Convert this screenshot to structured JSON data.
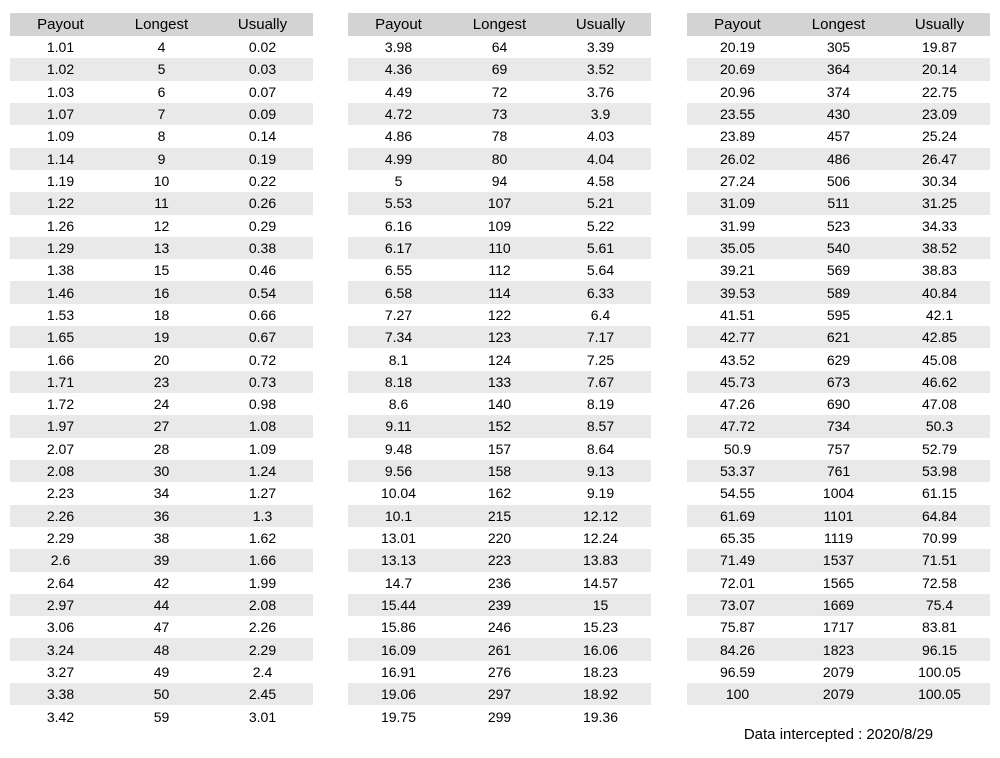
{
  "page": {
    "footer_note": "Data intercepted : 2020/8/29"
  },
  "style": {
    "header_bg": "#d3d3d3",
    "stripe_bg": "#e9e9e9",
    "text_color": "#000000"
  },
  "tables": [
    {
      "name": "payout-table-1",
      "headers": [
        "Payout",
        "Longest",
        "Usually"
      ],
      "rows": [
        [
          "1.01",
          "4",
          "0.02"
        ],
        [
          "1.02",
          "5",
          "0.03"
        ],
        [
          "1.03",
          "6",
          "0.07"
        ],
        [
          "1.07",
          "7",
          "0.09"
        ],
        [
          "1.09",
          "8",
          "0.14"
        ],
        [
          "1.14",
          "9",
          "0.19"
        ],
        [
          "1.19",
          "10",
          "0.22"
        ],
        [
          "1.22",
          "11",
          "0.26"
        ],
        [
          "1.26",
          "12",
          "0.29"
        ],
        [
          "1.29",
          "13",
          "0.38"
        ],
        [
          "1.38",
          "15",
          "0.46"
        ],
        [
          "1.46",
          "16",
          "0.54"
        ],
        [
          "1.53",
          "18",
          "0.66"
        ],
        [
          "1.65",
          "19",
          "0.67"
        ],
        [
          "1.66",
          "20",
          "0.72"
        ],
        [
          "1.71",
          "23",
          "0.73"
        ],
        [
          "1.72",
          "24",
          "0.98"
        ],
        [
          "1.97",
          "27",
          "1.08"
        ],
        [
          "2.07",
          "28",
          "1.09"
        ],
        [
          "2.08",
          "30",
          "1.24"
        ],
        [
          "2.23",
          "34",
          "1.27"
        ],
        [
          "2.26",
          "36",
          "1.3"
        ],
        [
          "2.29",
          "38",
          "1.62"
        ],
        [
          "2.6",
          "39",
          "1.66"
        ],
        [
          "2.64",
          "42",
          "1.99"
        ],
        [
          "2.97",
          "44",
          "2.08"
        ],
        [
          "3.06",
          "47",
          "2.26"
        ],
        [
          "3.24",
          "48",
          "2.29"
        ],
        [
          "3.27",
          "49",
          "2.4"
        ],
        [
          "3.38",
          "50",
          "2.45"
        ],
        [
          "3.42",
          "59",
          "3.01"
        ]
      ]
    },
    {
      "name": "payout-table-2",
      "headers": [
        "Payout",
        "Longest",
        "Usually"
      ],
      "rows": [
        [
          "3.98",
          "64",
          "3.39"
        ],
        [
          "4.36",
          "69",
          "3.52"
        ],
        [
          "4.49",
          "72",
          "3.76"
        ],
        [
          "4.72",
          "73",
          "3.9"
        ],
        [
          "4.86",
          "78",
          "4.03"
        ],
        [
          "4.99",
          "80",
          "4.04"
        ],
        [
          "5",
          "94",
          "4.58"
        ],
        [
          "5.53",
          "107",
          "5.21"
        ],
        [
          "6.16",
          "109",
          "5.22"
        ],
        [
          "6.17",
          "110",
          "5.61"
        ],
        [
          "6.55",
          "112",
          "5.64"
        ],
        [
          "6.58",
          "114",
          "6.33"
        ],
        [
          "7.27",
          "122",
          "6.4"
        ],
        [
          "7.34",
          "123",
          "7.17"
        ],
        [
          "8.1",
          "124",
          "7.25"
        ],
        [
          "8.18",
          "133",
          "7.67"
        ],
        [
          "8.6",
          "140",
          "8.19"
        ],
        [
          "9.11",
          "152",
          "8.57"
        ],
        [
          "9.48",
          "157",
          "8.64"
        ],
        [
          "9.56",
          "158",
          "9.13"
        ],
        [
          "10.04",
          "162",
          "9.19"
        ],
        [
          "10.1",
          "215",
          "12.12"
        ],
        [
          "13.01",
          "220",
          "12.24"
        ],
        [
          "13.13",
          "223",
          "13.83"
        ],
        [
          "14.7",
          "236",
          "14.57"
        ],
        [
          "15.44",
          "239",
          "15"
        ],
        [
          "15.86",
          "246",
          "15.23"
        ],
        [
          "16.09",
          "261",
          "16.06"
        ],
        [
          "16.91",
          "276",
          "18.23"
        ],
        [
          "19.06",
          "297",
          "18.92"
        ],
        [
          "19.75",
          "299",
          "19.36"
        ]
      ]
    },
    {
      "name": "payout-table-3",
      "headers": [
        "Payout",
        "Longest",
        "Usually"
      ],
      "rows": [
        [
          "20.19",
          "305",
          "19.87"
        ],
        [
          "20.69",
          "364",
          "20.14"
        ],
        [
          "20.96",
          "374",
          "22.75"
        ],
        [
          "23.55",
          "430",
          "23.09"
        ],
        [
          "23.89",
          "457",
          "25.24"
        ],
        [
          "26.02",
          "486",
          "26.47"
        ],
        [
          "27.24",
          "506",
          "30.34"
        ],
        [
          "31.09",
          "511",
          "31.25"
        ],
        [
          "31.99",
          "523",
          "34.33"
        ],
        [
          "35.05",
          "540",
          "38.52"
        ],
        [
          "39.21",
          "569",
          "38.83"
        ],
        [
          "39.53",
          "589",
          "40.84"
        ],
        [
          "41.51",
          "595",
          "42.1"
        ],
        [
          "42.77",
          "621",
          "42.85"
        ],
        [
          "43.52",
          "629",
          "45.08"
        ],
        [
          "45.73",
          "673",
          "46.62"
        ],
        [
          "47.26",
          "690",
          "47.08"
        ],
        [
          "47.72",
          "734",
          "50.3"
        ],
        [
          "50.9",
          "757",
          "52.79"
        ],
        [
          "53.37",
          "761",
          "53.98"
        ],
        [
          "54.55",
          "1004",
          "61.15"
        ],
        [
          "61.69",
          "1101",
          "64.84"
        ],
        [
          "65.35",
          "1119",
          "70.99"
        ],
        [
          "71.49",
          "1537",
          "71.51"
        ],
        [
          "72.01",
          "1565",
          "72.58"
        ],
        [
          "73.07",
          "1669",
          "75.4"
        ],
        [
          "75.87",
          "1717",
          "83.81"
        ],
        [
          "84.26",
          "1823",
          "96.15"
        ],
        [
          "96.59",
          "2079",
          "100.05"
        ],
        [
          "100",
          "2079",
          "100.05"
        ]
      ]
    }
  ]
}
